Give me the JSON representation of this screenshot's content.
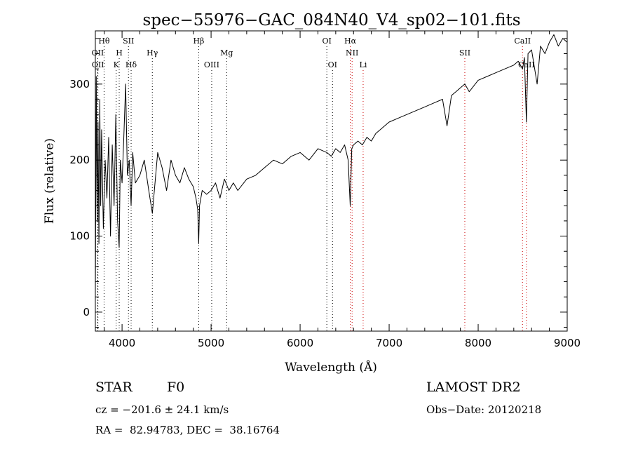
{
  "chart_data": {
    "type": "line",
    "title": "spec−55976−GAC_084N40_V4_sp02−101.fits",
    "xlabel": "Wavelength (Å)",
    "ylabel": "Flux (relative)",
    "xlim": [
      3700,
      9000
    ],
    "ylim": [
      -25,
      370
    ],
    "x_ticks": [
      4000,
      5000,
      6000,
      7000,
      8000,
      9000
    ],
    "y_ticks": [
      0,
      100,
      200,
      300
    ],
    "grid": false,
    "line_color": "#000000",
    "marker_color_red": "#cc0000",
    "series": [
      {
        "x": [
          3700,
          3710,
          3720,
          3730,
          3740,
          3750,
          3760,
          3770,
          3790,
          3810,
          3830,
          3850,
          3870,
          3890,
          3910,
          3930,
          3950,
          3968,
          3980,
          4000,
          4020,
          4040,
          4060,
          4080,
          4102,
          4120,
          4150,
          4200,
          4250,
          4300,
          4340,
          4400,
          4450,
          4500,
          4550,
          4600,
          4650,
          4700,
          4750,
          4800,
          4830,
          4850,
          4861,
          4870,
          4900,
          4950,
          5000,
          5050,
          5100,
          5150,
          5200,
          5250,
          5300,
          5400,
          5500,
          5600,
          5700,
          5800,
          5900,
          6000,
          6100,
          6200,
          6300,
          6350,
          6400,
          6450,
          6500,
          6540,
          6563,
          6580,
          6600,
          6650,
          6700,
          6750,
          6800,
          6850,
          6900,
          6950,
          7000,
          7100,
          7200,
          7300,
          7400,
          7500,
          7600,
          7650,
          7700,
          7750,
          7800,
          7850,
          7900,
          8000,
          8100,
          8200,
          8300,
          8400,
          8450,
          8498,
          8520,
          8542,
          8560,
          8600,
          8662,
          8700,
          8750,
          8800,
          8850,
          8900,
          8950,
          9000
        ],
        "y": [
          20,
          310,
          120,
          250,
          90,
          280,
          140,
          240,
          110,
          200,
          150,
          230,
          100,
          220,
          140,
          260,
          120,
          85,
          200,
          170,
          230,
          300,
          180,
          200,
          140,
          210,
          170,
          180,
          200,
          160,
          130,
          210,
          190,
          160,
          200,
          180,
          170,
          190,
          175,
          165,
          150,
          135,
          90,
          140,
          160,
          155,
          160,
          170,
          150,
          175,
          160,
          170,
          160,
          175,
          180,
          190,
          200,
          195,
          205,
          210,
          200,
          215,
          210,
          205,
          215,
          210,
          220,
          200,
          140,
          215,
          220,
          225,
          220,
          230,
          225,
          235,
          240,
          245,
          250,
          255,
          260,
          265,
          270,
          275,
          280,
          245,
          285,
          290,
          295,
          300,
          290,
          305,
          310,
          315,
          320,
          325,
          330,
          320,
          335,
          250,
          340,
          345,
          300,
          350,
          340,
          355,
          365,
          350,
          360,
          355
        ]
      }
    ],
    "line_markers": [
      {
        "label": "Hθ",
        "x": 3798,
        "row": 0,
        "color": "#000000"
      },
      {
        "label": "OII",
        "x": 3727,
        "row": 1,
        "color": "#000000"
      },
      {
        "label": "OII",
        "x": 3729,
        "row": 2,
        "color": "#000000"
      },
      {
        "label": "H",
        "x": 3968,
        "row": 1,
        "color": "#000000"
      },
      {
        "label": "K",
        "x": 3934,
        "row": 2,
        "color": "#000000"
      },
      {
        "label": "SII",
        "x": 4072,
        "row": 0,
        "color": "#000000"
      },
      {
        "label": "Hδ",
        "x": 4102,
        "row": 2,
        "color": "#000000"
      },
      {
        "label": "Hγ",
        "x": 4340,
        "row": 1,
        "color": "#000000"
      },
      {
        "label": "Hβ",
        "x": 4861,
        "row": 0,
        "color": "#000000"
      },
      {
        "label": "OIII",
        "x": 5007,
        "row": 2,
        "color": "#000000"
      },
      {
        "label": "Mg",
        "x": 5175,
        "row": 1,
        "color": "#000000"
      },
      {
        "label": "OI",
        "x": 6300,
        "row": 0,
        "color": "#000000"
      },
      {
        "label": "OI",
        "x": 6364,
        "row": 2,
        "color": "#000000"
      },
      {
        "label": "Hα",
        "x": 6563,
        "row": 0,
        "color": "#cc0000"
      },
      {
        "label": "NII",
        "x": 6584,
        "row": 1,
        "color": "#cc0000"
      },
      {
        "label": "Li",
        "x": 6708,
        "row": 2,
        "color": "#cc0000"
      },
      {
        "label": "SII",
        "x": 7850,
        "row": 1,
        "color": "#cc0000"
      },
      {
        "label": "CaII",
        "x": 8498,
        "row": 0,
        "color": "#cc0000"
      },
      {
        "label": "CaII",
        "x": 8542,
        "row": 2,
        "color": "#cc0000"
      }
    ]
  },
  "info": {
    "object_class": "STAR",
    "subclass": "F0",
    "survey": "LAMOST DR2",
    "redshift": "cz = −201.6 ± 24.1 km/s",
    "obs_date": "Obs−Date: 20120218",
    "coordinates": "RA =  82.94783, DEC =  38.16764"
  }
}
